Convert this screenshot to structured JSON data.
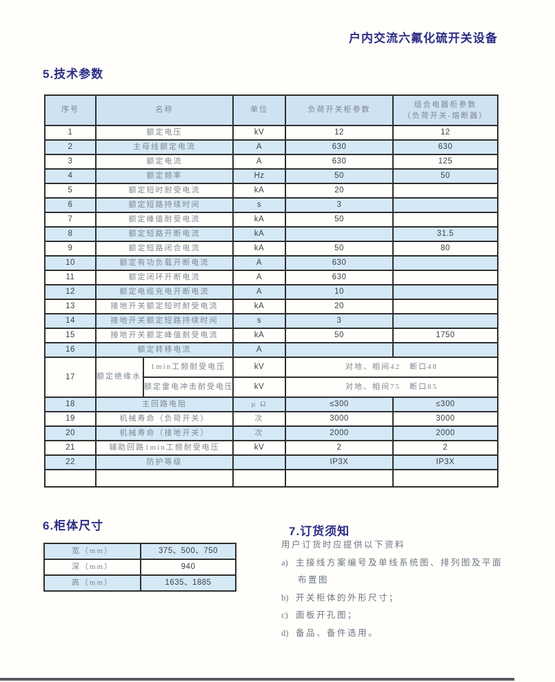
{
  "page": {
    "header_title": "户内交流六氟化硫开关设备"
  },
  "colors": {
    "accent": "#2b2d85",
    "table_header_blue": "#cfe2f1",
    "table_row_blue": "#d5e8f6",
    "table_border": "#2e2e2e",
    "chinese_text": "#7d8791",
    "value_text": "#3b4045",
    "order_text": "#6d7781",
    "footer_bar": "#58595b"
  },
  "section5": {
    "title": "5.技术参数",
    "table": {
      "columns": [
        "序号",
        "名称",
        "单位",
        "负荷开关柜参数",
        "组合电器柜参数"
      ],
      "col5_line2": "（负荷开关-熔断器）",
      "rows": [
        {
          "no": "1",
          "name": "额定电压",
          "unit": "kV",
          "load": "12",
          "combo": "12",
          "shaded": false
        },
        {
          "no": "2",
          "name": "主母线额定电流",
          "unit": "A",
          "load": "630",
          "combo": "630",
          "shaded": true
        },
        {
          "no": "3",
          "name": "额定电流",
          "unit": "A",
          "load": "630",
          "combo": "125",
          "shaded": false
        },
        {
          "no": "4",
          "name": "额定频率",
          "unit": "Hz",
          "load": "50",
          "combo": "50",
          "shaded": true
        },
        {
          "no": "5",
          "name": "额定短时耐受电流",
          "unit": "kA",
          "load": "20",
          "combo": "",
          "shaded": false
        },
        {
          "no": "6",
          "name": "额定短路持续时间",
          "unit": "s",
          "load": "3",
          "combo": "",
          "shaded": true
        },
        {
          "no": "7",
          "name": "额定峰值耐受电流",
          "unit": "kA",
          "load": "50",
          "combo": "",
          "shaded": false
        },
        {
          "no": "8",
          "name": "额定短路开断电流",
          "unit": "kA",
          "load": "",
          "combo": "31.5",
          "shaded": true
        },
        {
          "no": "9",
          "name": "额定短路闭合电流",
          "unit": "kA",
          "load": "50",
          "combo": "80",
          "shaded": false
        },
        {
          "no": "10",
          "name": "额定有功负载开断电流",
          "unit": "A",
          "load": "630",
          "combo": "",
          "shaded": true
        },
        {
          "no": "11",
          "name": "额定闭环开断电流",
          "unit": "A",
          "load": "630",
          "combo": "",
          "shaded": false
        },
        {
          "no": "12",
          "name": "额定电缆充电开断电流",
          "unit": "A",
          "load": "10",
          "combo": "",
          "shaded": true
        },
        {
          "no": "13",
          "name": "接地开关额定短时耐受电流",
          "unit": "kA",
          "load": "20",
          "combo": "",
          "shaded": false
        },
        {
          "no": "14",
          "name": "接地开关额定短路持续时间",
          "unit": "s",
          "load": "3",
          "combo": "",
          "shaded": true
        },
        {
          "no": "15",
          "name": "接地开关额定峰值耐受电流",
          "unit": "kA",
          "load": "50",
          "combo": "1750",
          "shaded": false
        },
        {
          "no": "16",
          "name": "额定转移电流",
          "unit": "A",
          "load": "",
          "combo": "",
          "shaded": true
        },
        {
          "no": "17",
          "name": "额定绝缘水平",
          "shaded": false,
          "subrows": [
            {
              "name": "1min工频耐受电压",
              "unit": "kV",
              "value": "对地、相间42　断口48"
            },
            {
              "name": "额定雷电冲击耐受电压",
              "unit": "kV",
              "value": "对地、相间75　断口85"
            }
          ]
        },
        {
          "no": "18",
          "name": "主回路电阻",
          "unit": "μ Ω",
          "load": "≤300",
          "combo": "≤300",
          "shaded": true
        },
        {
          "no": "19",
          "name": "机械寿命（负荷开关）",
          "unit": "次",
          "load": "3000",
          "combo": "3000",
          "shaded": false
        },
        {
          "no": "20",
          "name": "机械寿命（接地开关）",
          "unit": "次",
          "load": "2000",
          "combo": "2000",
          "shaded": true
        },
        {
          "no": "21",
          "name": "辅助回路1min工频耐受电压",
          "unit": "kV",
          "load": "2",
          "combo": "2",
          "shaded": false
        },
        {
          "no": "22",
          "name": "防护等级",
          "unit": "",
          "load": "IP3X",
          "combo": "IP3X",
          "shaded": true
        },
        {
          "no": "",
          "name": "",
          "unit": "",
          "load": "",
          "combo": "",
          "shaded": false,
          "empty": true
        }
      ]
    }
  },
  "section6": {
    "title": "6.柜体尺寸",
    "rows": [
      {
        "label": "宽（mm）",
        "value": "375、500、750",
        "shaded": true
      },
      {
        "label": "深（mm）",
        "value": "940",
        "shaded": false
      },
      {
        "label": "高（mm）",
        "value": "1635、1885",
        "shaded": true
      }
    ]
  },
  "section7": {
    "title": "7.订货须知",
    "intro": "用户订货时应提供以下资料",
    "items": [
      {
        "marker": "a)",
        "text": "主接线方案编号及单线系统图、排列图及平面",
        "text2": "布置图"
      },
      {
        "marker": "b)",
        "text": "开关柜体的外形尺寸；"
      },
      {
        "marker": "c)",
        "text": "面板开孔图；"
      },
      {
        "marker": "d)",
        "text": "备品、备件选用。"
      }
    ]
  }
}
